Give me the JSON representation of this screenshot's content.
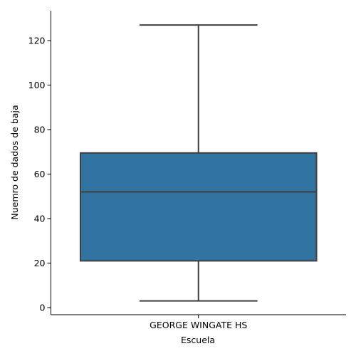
{
  "chart_data": {
    "type": "box",
    "title": "",
    "xlabel": "Escuela",
    "ylabel": "Nuemro de dados de baja",
    "categories": [
      "GEORGE WINGATE HS"
    ],
    "boxes": [
      {
        "category": "GEORGE WINGATE HS",
        "whisker_low": 3,
        "q1": 21,
        "median": 52,
        "q3": 69.5,
        "whisker_high": 127
      }
    ],
    "ylim": [
      -3.5,
      133
    ],
    "yticks": [
      0,
      20,
      40,
      60,
      80,
      100,
      120
    ],
    "grid": false,
    "box_color": "#3274a1",
    "line_color": "#3f3f3f"
  }
}
